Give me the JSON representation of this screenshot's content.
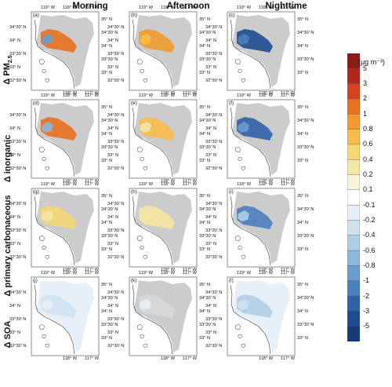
{
  "columns": [
    "Morning",
    "Afternoon",
    "Nighttime"
  ],
  "rows": [
    {
      "title": "Δ PM",
      "sub": "2.5"
    },
    {
      "title": "Δ inorganic",
      "sub": ""
    },
    {
      "title": "Δ primary carbonaceous",
      "sub": ""
    },
    {
      "title": "Δ SOA",
      "sub": ""
    }
  ],
  "panel_labels": [
    "(a)",
    "(b)",
    "(c)",
    "(d)",
    "(e)",
    "(f)",
    "(g)",
    "(h)",
    "(i)",
    "(j)",
    "(k)",
    "(l)"
  ],
  "lat_left": [
    "34°30' N",
    "34° N",
    "33°30' N",
    "33° N",
    "32°30' N"
  ],
  "lat_right": [
    "35° N",
    "34°30' N",
    "34° N",
    "33°30' N",
    "33° N"
  ],
  "lon_top": [
    "119° W",
    "118° W",
    "117° W"
  ],
  "lon_bottom": [
    "118° W",
    "117° W"
  ],
  "colorbar": {
    "units": "(μg m⁻³)",
    "labels": [
      "5",
      "3",
      "2",
      "1",
      "0.8",
      "0.6",
      "0.4",
      "0.2",
      "0.1",
      "-0.1",
      "-0.2",
      "-0.4",
      "-0.6",
      "-0.8",
      "-1",
      "-2",
      "-3",
      "-5"
    ],
    "colors": [
      "#8b1a1a",
      "#b3261e",
      "#d4421f",
      "#e9701f",
      "#f29a2e",
      "#f7bd4a",
      "#f6d774",
      "#f3e7a8",
      "#f7f3dc",
      "#ffffff",
      "#e7f0f8",
      "#cfe1f0",
      "#b0cde6",
      "#8db7dc",
      "#6a9ccc",
      "#4a80bd",
      "#2f62a6",
      "#1d4c8e",
      "#153a74"
    ]
  },
  "panels": [
    {
      "fill": [
        "#cccccc",
        "#e9701f",
        "#6a9ccc"
      ],
      "detail": "mixed"
    },
    {
      "fill": [
        "#cccccc",
        "#f29a2e",
        "#f7bd4a"
      ],
      "detail": "warm"
    },
    {
      "fill": [
        "#cccccc",
        "#1d4c8e",
        "#4a80bd"
      ],
      "detail": "cool"
    },
    {
      "fill": [
        "#cccccc",
        "#e9701f",
        "#8db7dc"
      ],
      "detail": "mixed"
    },
    {
      "fill": [
        "#cccccc",
        "#f7bd4a",
        "#f3e7a8"
      ],
      "detail": "warm"
    },
    {
      "fill": [
        "#cccccc",
        "#2f62a6",
        "#6a9ccc"
      ],
      "detail": "cool"
    },
    {
      "fill": [
        "#cccccc",
        "#f6d774",
        "#f3e7a8"
      ],
      "detail": "light"
    },
    {
      "fill": [
        "#cccccc",
        "#f7e7a0",
        "#f3e7a8"
      ],
      "detail": "light"
    },
    {
      "fill": [
        "#cccccc",
        "#4a80bd",
        "#b0cde6"
      ],
      "detail": "cool"
    },
    {
      "fill": [
        "#e7f0f8",
        "#cfe1f0",
        "#e7f0f8"
      ],
      "detail": "pale"
    },
    {
      "fill": [
        "#cccccc",
        "#d9d9d9",
        "#e7f0f8"
      ],
      "detail": "grey"
    },
    {
      "fill": [
        "#e7f0f8",
        "#b0cde6",
        "#cfe1f0"
      ],
      "detail": "pale"
    }
  ]
}
